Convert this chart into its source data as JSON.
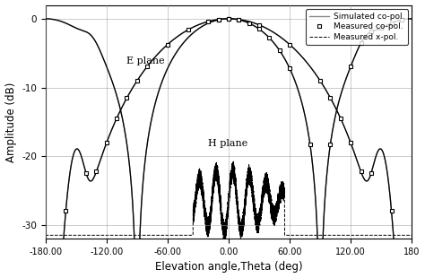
{
  "xlabel": "Elevation angle,Theta (deg)",
  "ylabel": "Amplitude (dB)",
  "xlim": [
    -180,
    180
  ],
  "ylim": [
    -32,
    2
  ],
  "xticks": [
    -180,
    -120,
    -60,
    0,
    60,
    120,
    180
  ],
  "yticks": [
    0,
    -10,
    -20,
    -30
  ],
  "xtick_labels": [
    "-180.00",
    "-120.00",
    "-60.00",
    "0.00",
    "60.00",
    "120.00",
    "180"
  ],
  "ytick_labels": [
    "0",
    "-10",
    "-20",
    "-30"
  ],
  "legend_entries": [
    "Simulated co-pol.",
    "Measured co-pol.",
    "Measured x-pol."
  ],
  "e_plane_label": "E plane",
  "h_plane_label": "H plane",
  "background_color": "#ffffff",
  "sim_color": "#888888",
  "meas_color": "#000000",
  "xpol_color": "#000000"
}
